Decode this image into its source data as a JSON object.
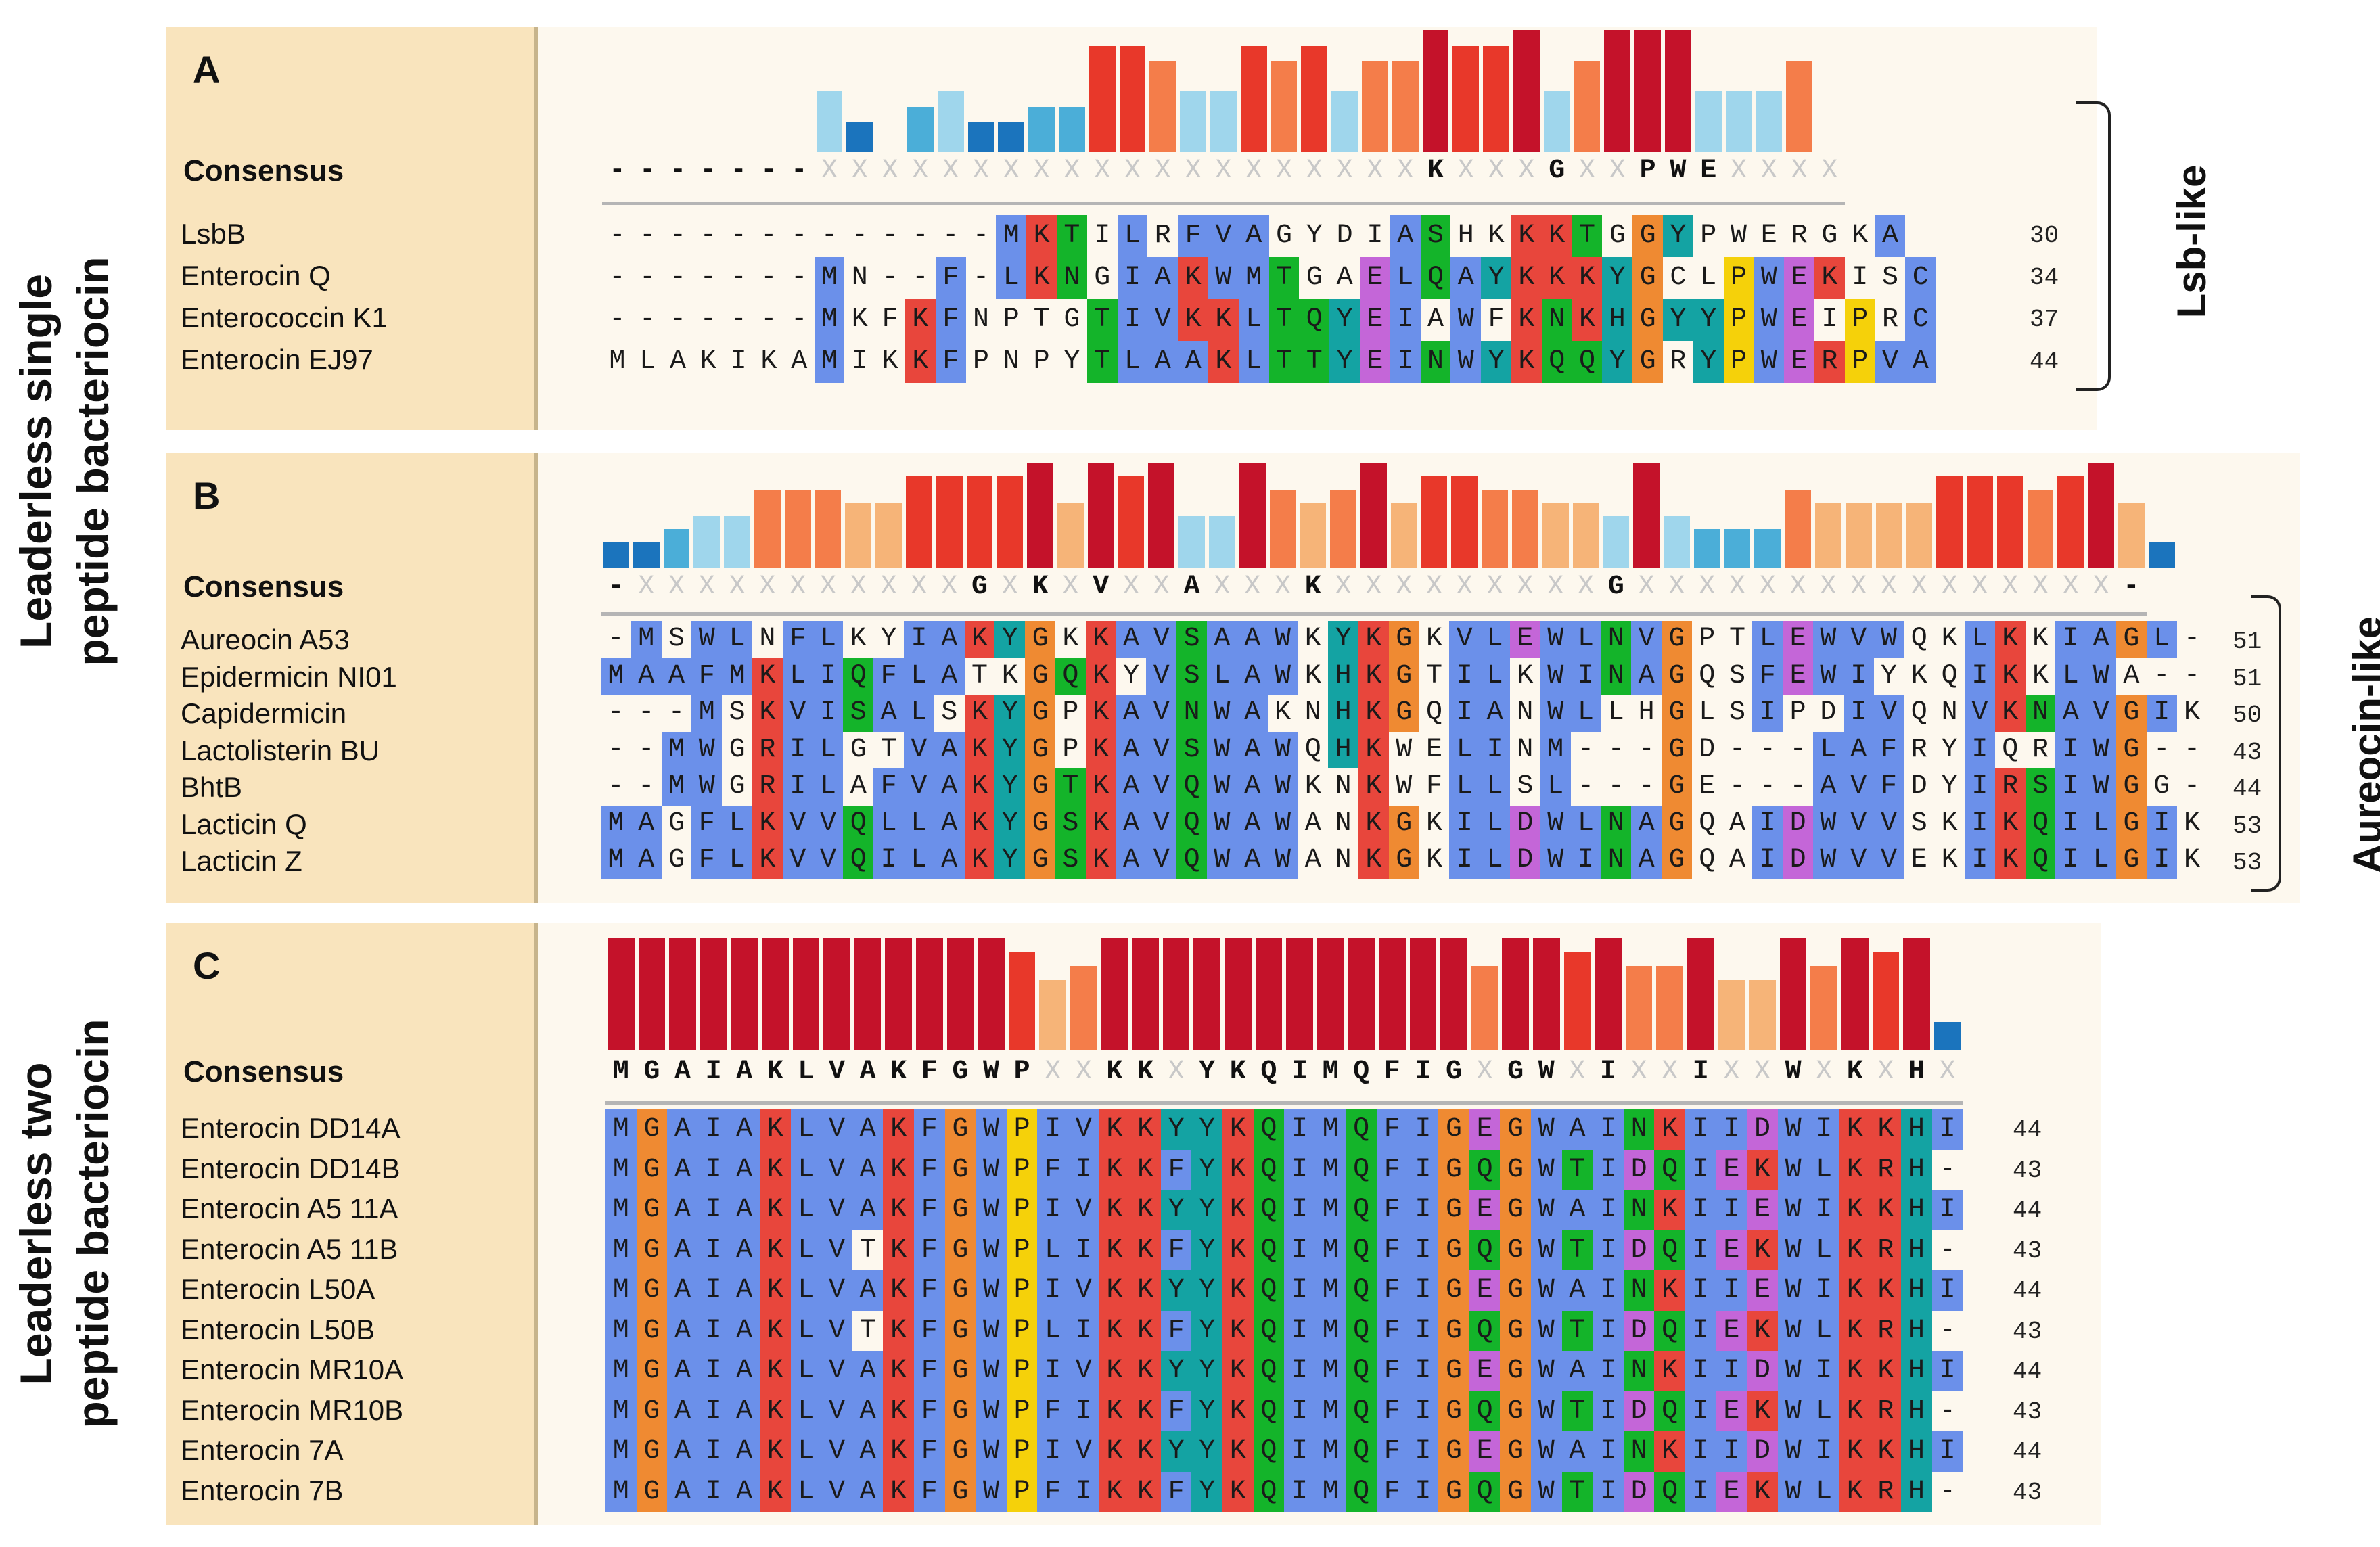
{
  "colors": {
    "hydrophobic": "#6b90ea",
    "positive": "#e8463c",
    "glycine": "#ef8a32",
    "proline": "#f5d10a",
    "aromatic": "#14a3a3",
    "polar": "#14b42a",
    "negative": "#c466d8",
    "bar_scale": [
      "#2a3aa0",
      "#1b74bd",
      "#4baed8",
      "#9fd6ec",
      "#f6b478",
      "#f47d4a",
      "#e8382a",
      "#c4122a"
    ]
  },
  "side_labels": {
    "single": "Leaderless single peptide bacteriocin",
    "single_line1": "Leaderless single",
    "single_line2": "peptide bacteriocin",
    "two_line1": "Leaderless two",
    "two_line2": "peptide bacteriocin",
    "two": "Leaderless two peptide bacteriocin"
  },
  "panels": [
    {
      "label": "A",
      "consensus_label": "Consensus",
      "group_label": "Lsb-like",
      "consensus": "-------XXXXXXXXXXXXXXXXXXXXKXXXGXXPWEXXXX",
      "conservation": [
        0,
        0,
        0,
        0,
        0,
        0,
        0,
        3,
        1,
        0,
        2,
        3,
        1,
        1,
        2,
        2,
        6,
        6,
        5,
        3,
        3,
        6,
        5,
        6,
        3,
        5,
        5,
        7,
        6,
        6,
        7,
        3,
        5,
        7,
        7,
        7,
        3,
        3,
        3,
        5
      ],
      "sequences": [
        {
          "name": "LsbB",
          "seq": "-------------MKTILRFVAGYDIASHKKKTGGYPWERGKA",
          "length": "30"
        },
        {
          "name": "Enterocin Q",
          "seq": "-------MN--F-LKNGIAKWMTGAELQAYKKKYGCLPWEKISC",
          "length": "34"
        },
        {
          "name": "Enterococcin K1",
          "seq": "-------MKFKFNPTGTIVKKLTQYEIAWFKNKHGYYPWEIPRC",
          "length": "37"
        },
        {
          "name": "Enterocin EJ97",
          "seq": "MLAKIKAMIKKFPNPYTLAAKLTTYEINWYKQQYGRYPWERPVA",
          "length": "44"
        }
      ]
    },
    {
      "label": "B",
      "consensus_label": "Consensus",
      "group_label": "Aureocin-like",
      "consensus": "-XXXXXXXXXXXGXKXVXXAXXXKXXXXXXXXXGXXXXXXXXXXXXXXXX-",
      "conservation": [
        1,
        1,
        2,
        3,
        3,
        5,
        5,
        5,
        4,
        4,
        6,
        6,
        6,
        6,
        7,
        4,
        7,
        6,
        7,
        3,
        3,
        7,
        5,
        4,
        5,
        7,
        4,
        6,
        6,
        5,
        5,
        4,
        4,
        3,
        7,
        3,
        2,
        2,
        2,
        5,
        4,
        4,
        4,
        4,
        6,
        6,
        6,
        5,
        6,
        7,
        4,
        1
      ],
      "sequences": [
        {
          "name": "Aureocin A53",
          "seq": "-MSWLNFLKYIAKYGKKAVSAAWKYKGKVLEWLNVGPTLEWVWQKLKKIAGL-",
          "length": "51"
        },
        {
          "name": "Epidermicin NI01",
          "seq": "MAAFMKLIQFLATKGQKYVSLAWKHKGTILKWINAGQSFEWIYKQIKKLWA--",
          "length": "51"
        },
        {
          "name": "Capidermicin",
          "seq": "---MSKVISALSKYGPKAVNWAKNHKGQIANWLLHGLSIPDIVQNVKNAVGIK",
          "length": "50"
        },
        {
          "name": "Lactolisterin BU",
          "seq": "--MWGRILGTVAKYGPKAVSWAWQHKWELINM---GD---LAFRYIQRIWG--",
          "length": "43"
        },
        {
          "name": "BhtB",
          "seq": "--MWGRILAFVAKYGTKAVQWAWKNKWFLLSL---GE---AVFDYIRSIWGG-",
          "length": "44"
        },
        {
          "name": "Lacticin Q",
          "seq": "MAGFLKVVQLLAKYGSKAVQWAWANKGKILDWLNAGQAIDWVVSKIKQILGIK",
          "length": "53"
        },
        {
          "name": "Lacticin Z",
          "seq": "MAGFLKVVQILAKYGSKAVQWAWANKGKILDWINAGQAIDWVVEKIKQILGIK",
          "length": "53"
        }
      ]
    },
    {
      "label": "C",
      "consensus_label": "Consensus",
      "consensus": "MGAIAKLVAKFGWPXXKKXYKQIMQFIGXGWXIXXIXXWXKXHX",
      "conservation": [
        7,
        7,
        7,
        7,
        7,
        7,
        7,
        7,
        7,
        7,
        7,
        7,
        7,
        6,
        4,
        5,
        7,
        7,
        7,
        7,
        7,
        7,
        7,
        7,
        7,
        7,
        7,
        7,
        5,
        7,
        7,
        6,
        7,
        5,
        5,
        7,
        4,
        4,
        7,
        5,
        7,
        6,
        7,
        1
      ],
      "sequences": [
        {
          "name": "Enterocin DD14A",
          "seq": "MGAIAKLVAKFGWPIVKKYYKQIMQFIGEGWAINKIIDWIKKHI",
          "length": "44"
        },
        {
          "name": "Enterocin DD14B",
          "seq": "MGAIAKLVAKFGWPFIKKFYKQIMQFIGQGWTIDQIEKWLKRH-",
          "length": "43"
        },
        {
          "name": "Enterocin A5 11A",
          "seq": "MGAIAKLVAKFGWPIVKKYYKQIMQFIGEGWAINKIIEWIKKHI",
          "length": "44"
        },
        {
          "name": "Enterocin  A5 11B",
          "seq": "MGAIAKLVTKFGWPLIKKFYKQIMQFIGQGWTIDQIEKWLKRH-",
          "length": "43"
        },
        {
          "name": "Enterocin L50A",
          "seq": "MGAIAKLVAKFGWPIVKKYYKQIMQFIGEGWAINKIIEWIKKHI",
          "length": "44"
        },
        {
          "name": "Enterocin L50B",
          "seq": "MGAIAKLVTKFGWPLIKKFYKQIMQFIGQGWTIDQIEKWLKRH-",
          "length": "43"
        },
        {
          "name": "Enterocin MR10A",
          "seq": "MGAIAKLVAKFGWPIVKKYYKQIMQFIGEGWAINKIIDWIKKHI",
          "length": "44"
        },
        {
          "name": "Enterocin MR10B",
          "seq": "MGAIAKLVAKFGWPFIKKFYKQIMQFIGQGWTIDQIEKWLKRH-",
          "length": "43"
        },
        {
          "name": "Enterocin 7A",
          "seq": "MGAIAKLVAKFGWPIVKKYYKQIMQFIGEGWAINKIIDWIKKHI",
          "length": "44"
        },
        {
          "name": "Enterocin 7B",
          "seq": "MGAIAKLVAKFGWPFIKKFYKQIMQFIGQGWTIDQIEKWLKRH-",
          "length": "43"
        }
      ]
    }
  ]
}
